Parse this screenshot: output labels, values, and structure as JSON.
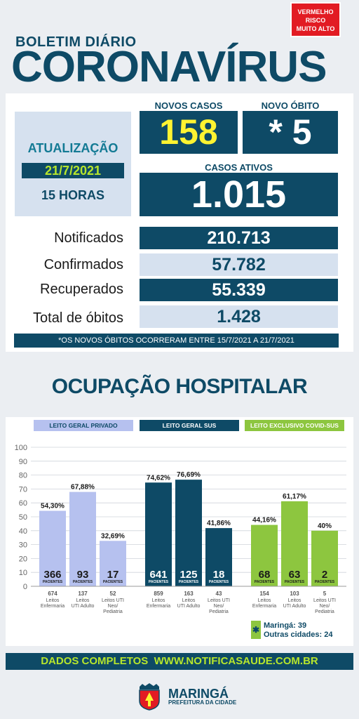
{
  "risk_badge": "VERMELHO\nRISCO\nMUITO ALTO",
  "header": {
    "subtitle": "BOLETIM DIÁRIO",
    "title": "CORONAVÍRUS"
  },
  "update": {
    "label": "ATUALIZAÇÃO",
    "date": "21/7/2021",
    "hour": "15 HORAS"
  },
  "new_cases": {
    "label": "NOVOS CASOS",
    "value": "158"
  },
  "new_death": {
    "label": "NOVO ÓBITO",
    "value": "* 5"
  },
  "active_cases": {
    "label": "CASOS ATIVOS",
    "value": "1.015"
  },
  "stats": [
    {
      "label": "Notificados",
      "value": "210.713"
    },
    {
      "label": "Confirmados",
      "value": "57.782"
    },
    {
      "label": "Recuperados",
      "value": "55.339"
    },
    {
      "label": "Total de óbitos",
      "value": "1.428"
    }
  ],
  "footnote": "*OS NOVOS ÓBITOS OCORRERAM ENTRE 15/7/2021 A 21/7/2021",
  "hospital_title": "OCUPAÇÃO HOSPITALAR",
  "chart_data": {
    "type": "bar",
    "ylim": [
      0,
      100
    ],
    "yticks": [
      "0",
      "10",
      "20",
      "30",
      "40",
      "50",
      "60",
      "70",
      "80",
      "90",
      "100"
    ],
    "patients_unit": "PACIENTES",
    "groups": [
      {
        "name": "LEITO GERAL PRIVADO",
        "color": "#b6c1ef",
        "head_color": "#b6c1ef",
        "head_text_color": "#0e4a66",
        "bars": [
          {
            "pct": 54.3,
            "pct_label": "54,30%",
            "patients": "366",
            "beds": "674",
            "category": "Leitos Enfermaria"
          },
          {
            "pct": 67.88,
            "pct_label": "67,88%",
            "patients": "93",
            "beds": "137",
            "category": "Leitos UTI Adulto"
          },
          {
            "pct": 32.69,
            "pct_label": "32,69%",
            "patients": "17",
            "beds": "52",
            "category": "Leitos UTI Neo/ Pediatria"
          }
        ]
      },
      {
        "name": "LEITO GERAL SUS",
        "color": "#0e4a66",
        "head_color": "#0e4a66",
        "head_text_color": "#ffffff",
        "bars": [
          {
            "pct": 74.62,
            "pct_label": "74,62%",
            "patients": "641",
            "beds": "859",
            "category": "Leitos Enfermaria"
          },
          {
            "pct": 76.69,
            "pct_label": "76,69%",
            "patients": "125",
            "beds": "163",
            "category": "Leitos UTI Adulto"
          },
          {
            "pct": 41.86,
            "pct_label": "41,86%",
            "patients": "18",
            "beds": "43",
            "category": "Leitos UTI Neo/ Pediatria"
          }
        ]
      },
      {
        "name": "LEITO EXCLUSIVO COVID-SUS",
        "color": "#8dc63f",
        "head_color": "#8dc63f",
        "head_text_color": "#ffffff",
        "bars": [
          {
            "pct": 44.16,
            "pct_label": "44,16%",
            "patients": "68",
            "beds": "154",
            "category": "Leitos Enfermaria"
          },
          {
            "pct": 61.17,
            "pct_label": "61,17%",
            "patients": "63",
            "beds": "103",
            "category": "Leitos UTI Adulto"
          },
          {
            "pct": 40,
            "pct_label": "40%",
            "patients": "2",
            "beds": "5",
            "category": "Leitos UTI Neo/ Pediatria"
          }
        ]
      }
    ]
  },
  "legend": {
    "icon": "asterisk-icon",
    "maringa": "Maringá: 39",
    "others": "Outras cidades: 24"
  },
  "site_bar": "DADOS COMPLETOS  WWW.NOTIFICASAUDE.COM.BR",
  "logo": {
    "name": "MARINGÁ",
    "subtitle": "PREFEITURA DA CIDADE"
  }
}
